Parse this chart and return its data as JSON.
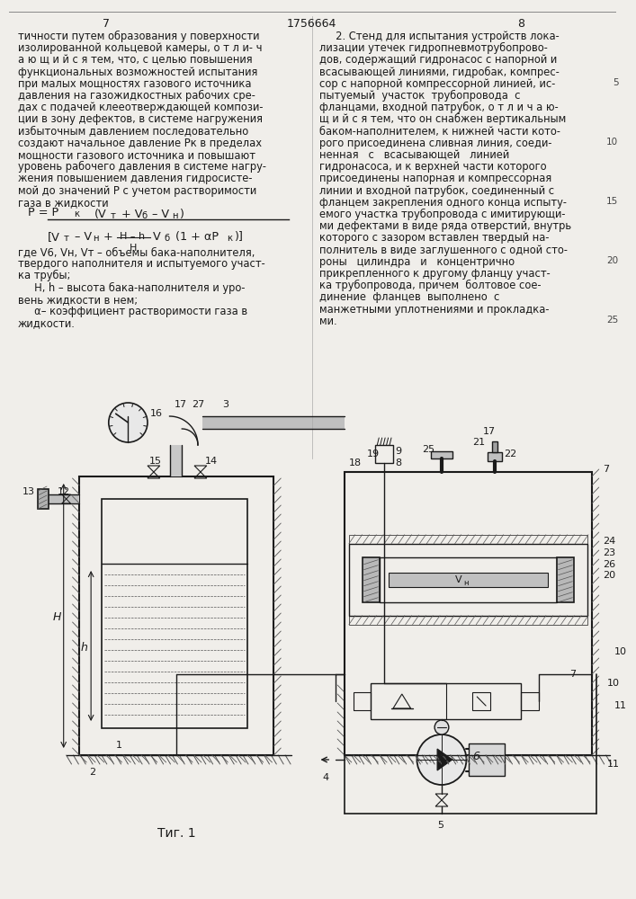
{
  "page_number_left": "7",
  "patent_number": "1756664",
  "page_number_right": "8",
  "bg_color": "#f0eeea",
  "left_column_text": [
    "тичности путем образования у поверхности",
    "изолированной кольцевой камеры, о т л и- ч",
    "а ю щ и й с я тем, что, с целью повышения",
    "функциональных возможностей испытания",
    "при малых мощностях газового источника",
    "давления на газожидкостных рабочих сре-",
    "дах с подачей клееотверждающей компози-",
    "ции в зону дефектов, в системе нагружения",
    "избыточным давлением последовательно",
    "создают начальное давление Рк в пределах",
    "мощности газового источника и повышают",
    "уровень рабочего давления в системе нагру-",
    "жения повышением давления гидросисте-",
    "мой до значений Р с учетом растворимости",
    "газа в жидкости"
  ],
  "left_column_text2": [
    "где V6, Vн, Vт – объемы бака-наполнителя,",
    "твердого наполнителя и испытуемого участ-",
    "ка трубы;",
    "     Н, h – высота бака-наполнителя и уро-",
    "вень жидкости в нем;",
    "     α– коэффициент растворимости газа в",
    "жидкости."
  ],
  "right_column_text": [
    "     2. Стенд для испытания устройств лока-",
    "лизации утечек гидропневмотрубопрово-",
    "дов, содержащий гидронасос с напорной и",
    "всасывающей линиями, гидробак, компрес-",
    "сор с напорной компрессорной линией, ис-",
    "пытуемый  участок  трубопровода  с",
    "фланцами, входной патрубок, о т л и ч а ю-",
    "щ и й с я тем, что он снабжен вертикальным",
    "баком-наполнителем, к нижней части кото-",
    "рого присоединена сливная линия, соеди-",
    "ненная   с   всасывающей   линией",
    "гидронасоса, и к верхней части которого",
    "присоединены напорная и компрессорная",
    "линии и входной патрубок, соединенный с",
    "фланцем закрепления одного конца испыту-",
    "емого участка трубопровода с имитирующи-",
    "ми дефектами в виде ряда отверстий, внутрь",
    "которого с зазором вставлен твердый на-",
    "полнитель в виде заглушенного с одной сто-",
    "роны   цилиндра   и   концентрично",
    "прикрепленного к другому фланцу участ-",
    "ка трубопровода, причем  болтовое сое-",
    "динение  фланцев  выполнено  с",
    "манжетными уплотнениями и прокладка-",
    "ми."
  ],
  "line_numbers": [
    5,
    10,
    15,
    20,
    25
  ],
  "fig_label": "Τиг. 1"
}
